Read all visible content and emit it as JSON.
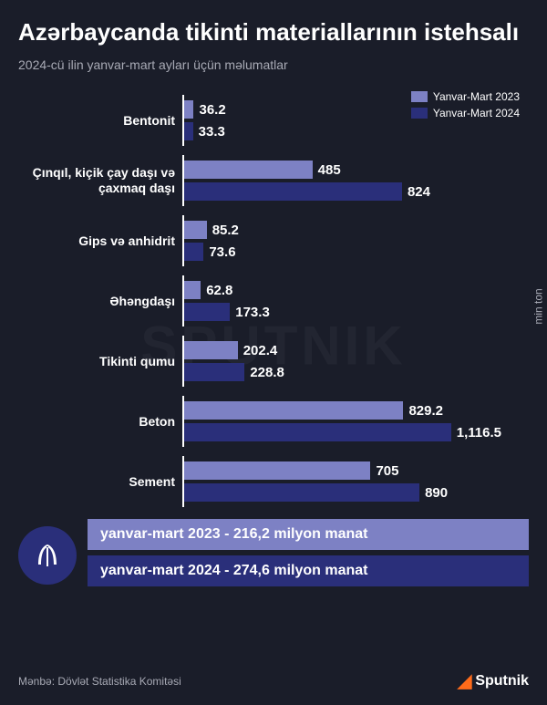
{
  "title": "Azərbaycanda tikinti materiallarının istehsalı",
  "subtitle": "2024-cü ilin yanvar-mart ayları üçün məlumatlar",
  "yAxisLabel": "min ton",
  "watermark": "SPUTNIK",
  "legend": [
    {
      "label": "Yanvar-Mart 2023",
      "color": "#7d81c4"
    },
    {
      "label": "Yanvar-Mart 2024",
      "color": "#2a2f7a"
    }
  ],
  "chart": {
    "type": "grouped-horizontal-bar",
    "maxValue": 1200,
    "barColors": [
      "#7d81c4",
      "#2a2f7a"
    ],
    "valueFontSize": 15,
    "labelFontSize": 14,
    "categories": [
      {
        "label": "Bentonit",
        "values": [
          36.2,
          33.3
        ]
      },
      {
        "label": "Çınqıl, kiçik çay daşı və çaxmaq daşı",
        "values": [
          485,
          824
        ]
      },
      {
        "label": "Gips və anhidrit",
        "values": [
          85.2,
          73.6
        ]
      },
      {
        "label": "Əhəngdaşı",
        "values": [
          62.8,
          173.3
        ]
      },
      {
        "label": "Tikinti qumu",
        "values": [
          202.4,
          228.8
        ]
      },
      {
        "label": "Beton",
        "values": [
          829.2,
          1116.5
        ],
        "display": [
          "829.2",
          "1,116.5"
        ]
      },
      {
        "label": "Sement",
        "values": [
          705,
          890
        ]
      }
    ]
  },
  "totals": [
    {
      "text": "yanvar-mart 2023 - 216,2 milyon manat",
      "bg": "#7d81c4"
    },
    {
      "text": "yanvar-mart 2024 - 274,6 milyon manat",
      "bg": "#2a2f7a"
    }
  ],
  "source": "Mənbə: Dövlət Statistika Komitəsi",
  "logoText": "Sputnik"
}
